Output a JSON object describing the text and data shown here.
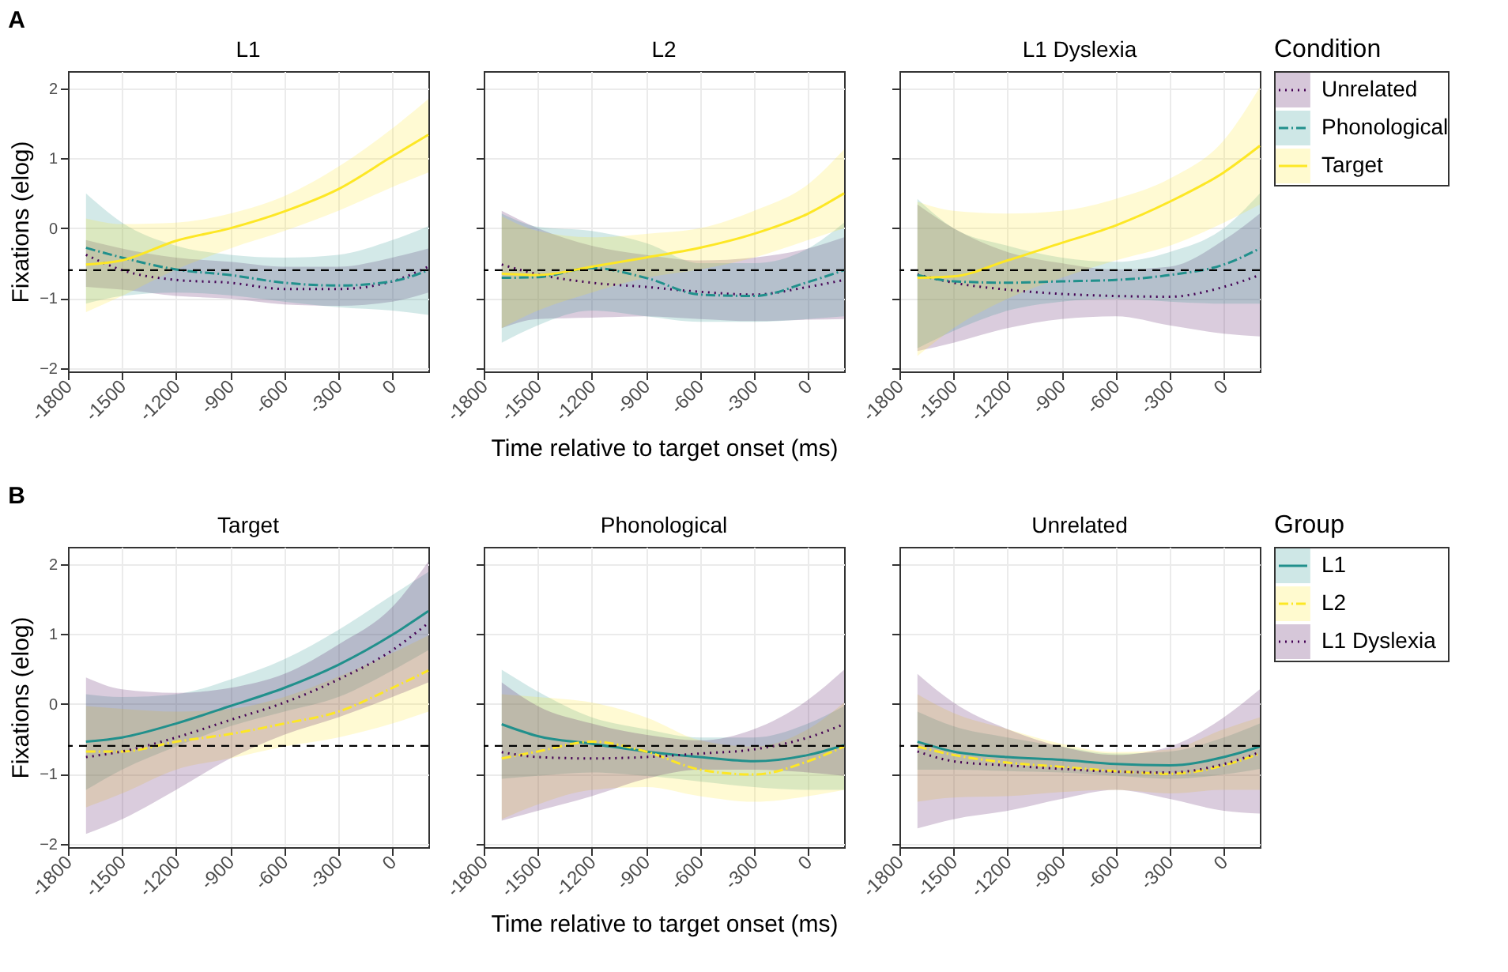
{
  "chart_data": [
    {
      "type": "line",
      "title": "L1",
      "ylabel": "Fixations (elog)",
      "annotations": [
        "A"
      ],
      "legend": "right",
      "legend_title": "Condition",
      "x": [
        -1700,
        -1500,
        -1200,
        -900,
        -600,
        -300,
        0,
        200
      ],
      "xlim": [
        -1800,
        200
      ],
      "xticks": [
        -1800,
        -1500,
        -1200,
        -900,
        -600,
        -300,
        0
      ],
      "ylim": [
        -2.05,
        2.25
      ],
      "yticks": [
        -2,
        -1,
        0,
        1,
        2
      ],
      "grid": true,
      "ref_lines": [
        {
          "axis": "y",
          "value": -0.6,
          "color": "#000000",
          "line_style": "dashed"
        }
      ],
      "series": [
        {
          "name": "Unrelated",
          "color": "#440154",
          "line_style": "dotted",
          "values": [
            -0.38,
            -0.6,
            -0.74,
            -0.78,
            -0.87,
            -0.87,
            -0.76,
            -0.55
          ],
          "lower": [
            -0.84,
            -0.88,
            -0.97,
            -1.01,
            -1.09,
            -1.11,
            -1.05,
            -0.92
          ],
          "upper": [
            -0.17,
            -0.29,
            -0.42,
            -0.48,
            -0.55,
            -0.55,
            -0.42,
            -0.29
          ]
        },
        {
          "name": "Phonological",
          "color": "#21908c",
          "line_style": "dashed",
          "values": [
            -0.28,
            -0.42,
            -0.59,
            -0.67,
            -0.78,
            -0.82,
            -0.76,
            -0.6
          ],
          "lower": [
            -1.08,
            -0.97,
            -0.92,
            -0.96,
            -1.05,
            -1.13,
            -1.18,
            -1.24
          ],
          "upper": [
            0.5,
            0.08,
            -0.25,
            -0.38,
            -0.42,
            -0.38,
            -0.17,
            0.03
          ]
        },
        {
          "name": "Target",
          "color": "#fde725",
          "line_style": "solid",
          "values": [
            -0.52,
            -0.46,
            -0.18,
            0.0,
            0.24,
            0.56,
            1.03,
            1.34
          ],
          "lower": [
            -1.2,
            -0.97,
            -0.59,
            -0.29,
            -0.04,
            0.25,
            0.59,
            0.8
          ],
          "upper": [
            0.14,
            0.06,
            0.08,
            0.21,
            0.46,
            0.88,
            1.43,
            1.85
          ]
        }
      ]
    },
    {
      "type": "line",
      "title": "L2",
      "xlabel": "Time relative to target onset (ms)",
      "tick_labels": "x",
      "x": [
        -1700,
        -1500,
        -1200,
        -900,
        -600,
        -300,
        0,
        200
      ],
      "xlim": [
        -1800,
        200
      ],
      "xticks": [
        -1800,
        -1500,
        -1200,
        -900,
        -600,
        -300,
        0
      ],
      "ylim": [
        -2.05,
        2.25
      ],
      "yticks": [
        -2,
        -1,
        0,
        1,
        2
      ],
      "grid": true,
      "ref_lines": [
        {
          "axis": "y",
          "value": -0.6,
          "color": "#000000",
          "line_style": "dashed"
        }
      ],
      "series": [
        {
          "color": "#440154",
          "line_style": "dotted",
          "values": [
            -0.52,
            -0.66,
            -0.78,
            -0.84,
            -0.91,
            -0.95,
            -0.84,
            -0.74
          ],
          "lower": [
            -1.43,
            -1.3,
            -1.28,
            -1.26,
            -1.3,
            -1.33,
            -1.31,
            -1.3
          ],
          "upper": [
            0.25,
            0.0,
            -0.25,
            -0.38,
            -0.46,
            -0.42,
            -0.29,
            -0.13
          ]
        },
        {
          "color": "#21908c",
          "line_style": "dashed",
          "values": [
            -0.71,
            -0.7,
            -0.57,
            -0.71,
            -0.95,
            -0.97,
            -0.77,
            -0.6
          ],
          "lower": [
            -1.64,
            -1.39,
            -1.18,
            -1.26,
            -1.34,
            -1.34,
            -1.3,
            -1.26
          ],
          "upper": [
            0.21,
            0.02,
            -0.04,
            -0.21,
            -0.5,
            -0.5,
            -0.29,
            0.08
          ]
        },
        {
          "color": "#fde725",
          "line_style": "solid",
          "values": [
            -0.65,
            -0.67,
            -0.55,
            -0.42,
            -0.28,
            -0.08,
            0.21,
            0.5
          ],
          "lower": [
            -1.43,
            -1.18,
            -0.92,
            -0.71,
            -0.59,
            -0.42,
            -0.17,
            0.0
          ],
          "upper": [
            0.17,
            -0.04,
            -0.13,
            -0.08,
            0.0,
            0.25,
            0.63,
            1.13
          ]
        }
      ]
    },
    {
      "type": "line",
      "title": "L1 Dyslexia",
      "tick_labels": "x",
      "x": [
        -1700,
        -1500,
        -1200,
        -900,
        -600,
        -300,
        0,
        200
      ],
      "xlim": [
        -1800,
        200
      ],
      "xticks": [
        -1800,
        -1500,
        -1200,
        -900,
        -600,
        -300,
        0
      ],
      "ylim": [
        -2.05,
        2.25
      ],
      "yticks": [
        -2,
        -1,
        0,
        1,
        2
      ],
      "grid": true,
      "ref_lines": [
        {
          "axis": "y",
          "value": -0.6,
          "color": "#000000",
          "line_style": "dashed"
        }
      ],
      "series": [
        {
          "color": "#440154",
          "line_style": "dotted",
          "values": [
            -0.66,
            -0.78,
            -0.88,
            -0.94,
            -0.97,
            -0.98,
            -0.84,
            -0.67
          ],
          "lower": [
            -1.76,
            -1.64,
            -1.43,
            -1.3,
            -1.26,
            -1.39,
            -1.51,
            -1.55
          ],
          "upper": [
            0.34,
            0.0,
            -0.34,
            -0.5,
            -0.59,
            -0.55,
            -0.17,
            0.21
          ]
        },
        {
          "color": "#21908c",
          "line_style": "dashed",
          "values": [
            -0.67,
            -0.76,
            -0.78,
            -0.76,
            -0.74,
            -0.67,
            -0.52,
            -0.29
          ],
          "lower": [
            -1.72,
            -1.47,
            -1.18,
            -1.05,
            -1.01,
            -1.05,
            -1.08,
            -1.08
          ],
          "upper": [
            0.42,
            0.0,
            -0.25,
            -0.42,
            -0.48,
            -0.34,
            0.0,
            0.5
          ]
        },
        {
          "color": "#fde725",
          "line_style": "solid",
          "values": [
            -0.71,
            -0.69,
            -0.46,
            -0.21,
            0.04,
            0.38,
            0.8,
            1.18
          ],
          "lower": [
            -1.83,
            -1.43,
            -1.01,
            -0.71,
            -0.46,
            -0.25,
            0.08,
            0.34
          ],
          "upper": [
            0.38,
            0.25,
            0.21,
            0.25,
            0.42,
            0.71,
            1.26,
            2.02
          ]
        }
      ]
    },
    {
      "type": "line",
      "title": "Target",
      "ylabel": "Fixations (elog)",
      "annotations": [
        "B"
      ],
      "legend": "right",
      "legend_title": "Group",
      "x": [
        -1700,
        -1500,
        -1200,
        -900,
        -600,
        -300,
        0,
        200
      ],
      "xlim": [
        -1800,
        200
      ],
      "xticks": [
        -1800,
        -1500,
        -1200,
        -900,
        -600,
        -300,
        0
      ],
      "ylim": [
        -2.05,
        2.25
      ],
      "yticks": [
        -2,
        -1,
        0,
        1,
        2
      ],
      "grid": true,
      "ref_lines": [
        {
          "axis": "y",
          "value": -0.6,
          "color": "#000000",
          "line_style": "dashed"
        }
      ],
      "series": [
        {
          "name": "L1",
          "color": "#21908c",
          "line_style": "solid",
          "values": [
            -0.54,
            -0.48,
            -0.28,
            -0.03,
            0.23,
            0.56,
            0.99,
            1.33
          ],
          "lower": [
            -1.23,
            -0.94,
            -0.61,
            -0.32,
            -0.11,
            0.1,
            0.48,
            0.77
          ],
          "upper": [
            0.14,
            0.1,
            0.14,
            0.35,
            0.64,
            1.06,
            1.56,
            1.89
          ]
        },
        {
          "name": "L2",
          "color": "#fde725",
          "line_style": "dashed",
          "values": [
            -0.68,
            -0.68,
            -0.54,
            -0.43,
            -0.28,
            -0.11,
            0.23,
            0.48
          ],
          "lower": [
            -1.48,
            -1.28,
            -0.94,
            -0.78,
            -0.61,
            -0.48,
            -0.28,
            -0.11
          ],
          "upper": [
            -0.03,
            -0.07,
            -0.11,
            -0.07,
            0.1,
            0.39,
            0.73,
            0.98
          ]
        },
        {
          "name": "L1 Dyslexia",
          "color": "#440154",
          "line_style": "dotted",
          "values": [
            -0.76,
            -0.68,
            -0.48,
            -0.23,
            0.02,
            0.35,
            0.77,
            1.16
          ],
          "lower": [
            -1.86,
            -1.65,
            -1.23,
            -0.78,
            -0.44,
            -0.19,
            0.1,
            0.31
          ],
          "upper": [
            0.38,
            0.21,
            0.16,
            0.23,
            0.43,
            0.85,
            1.39,
            2.04
          ]
        }
      ]
    },
    {
      "type": "line",
      "title": "Phonological",
      "xlabel": "Time relative to target onset (ms)",
      "tick_labels": "x",
      "x": [
        -1700,
        -1500,
        -1200,
        -900,
        -600,
        -300,
        0,
        200
      ],
      "xlim": [
        -1800,
        200
      ],
      "xticks": [
        -1800,
        -1500,
        -1200,
        -900,
        -600,
        -300,
        0
      ],
      "ylim": [
        -2.05,
        2.25
      ],
      "yticks": [
        -2,
        -1,
        0,
        1,
        2
      ],
      "grid": true,
      "ref_lines": [
        {
          "axis": "y",
          "value": -0.6,
          "color": "#000000",
          "line_style": "dashed"
        }
      ],
      "series": [
        {
          "color": "#21908c",
          "line_style": "solid",
          "values": [
            -0.29,
            -0.46,
            -0.57,
            -0.68,
            -0.76,
            -0.82,
            -0.73,
            -0.59
          ],
          "lower": [
            -1.07,
            -1.03,
            -0.98,
            -1.03,
            -1.11,
            -1.19,
            -1.23,
            -1.23
          ],
          "upper": [
            0.49,
            0.18,
            -0.19,
            -0.36,
            -0.48,
            -0.48,
            -0.28,
            -0.03
          ]
        },
        {
          "color": "#fde725",
          "line_style": "dashed",
          "values": [
            -0.78,
            -0.68,
            -0.54,
            -0.68,
            -0.94,
            -1.01,
            -0.82,
            -0.61
          ],
          "lower": [
            -1.65,
            -1.44,
            -1.23,
            -1.19,
            -1.32,
            -1.4,
            -1.32,
            -1.23
          ],
          "upper": [
            0.14,
            0.1,
            0.02,
            -0.19,
            -0.52,
            -0.61,
            -0.36,
            0.02
          ]
        },
        {
          "color": "#440154",
          "line_style": "dotted",
          "values": [
            -0.69,
            -0.76,
            -0.78,
            -0.76,
            -0.71,
            -0.65,
            -0.48,
            -0.29
          ],
          "lower": [
            -1.67,
            -1.53,
            -1.32,
            -1.07,
            -0.94,
            -0.94,
            -0.98,
            -1.03
          ],
          "upper": [
            0.31,
            -0.03,
            -0.28,
            -0.44,
            -0.52,
            -0.36,
            0.06,
            0.49
          ]
        }
      ]
    },
    {
      "type": "line",
      "title": "Unrelated",
      "tick_labels": "x",
      "x": [
        -1700,
        -1500,
        -1200,
        -900,
        -600,
        -300,
        0,
        200
      ],
      "xlim": [
        -1800,
        200
      ],
      "xticks": [
        -1800,
        -1500,
        -1200,
        -900,
        -600,
        -300,
        0
      ],
      "ylim": [
        -2.05,
        2.25
      ],
      "yticks": [
        -2,
        -1,
        0,
        1,
        2
      ],
      "grid": true,
      "ref_lines": [
        {
          "axis": "y",
          "value": -0.6,
          "color": "#000000",
          "line_style": "dashed"
        }
      ],
      "series": [
        {
          "color": "#21908c",
          "line_style": "solid",
          "values": [
            -0.54,
            -0.68,
            -0.76,
            -0.8,
            -0.86,
            -0.88,
            -0.76,
            -0.61
          ],
          "lower": [
            -0.94,
            -0.94,
            -0.96,
            -0.98,
            -1.03,
            -1.07,
            -1.01,
            -0.93
          ],
          "upper": [
            -0.11,
            -0.32,
            -0.48,
            -0.61,
            -0.71,
            -0.68,
            -0.48,
            -0.28
          ]
        },
        {
          "color": "#fde725",
          "line_style": "dashed",
          "values": [
            -0.61,
            -0.73,
            -0.84,
            -0.9,
            -0.96,
            -1.0,
            -0.88,
            -0.71
          ],
          "lower": [
            -1.4,
            -1.34,
            -1.32,
            -1.26,
            -1.23,
            -1.28,
            -1.23,
            -1.23
          ],
          "upper": [
            0.14,
            -0.13,
            -0.36,
            -0.57,
            -0.69,
            -0.65,
            -0.36,
            -0.19
          ]
        },
        {
          "color": "#440154",
          "line_style": "dotted",
          "values": [
            -0.68,
            -0.82,
            -0.88,
            -0.93,
            -0.97,
            -0.98,
            -0.86,
            -0.69
          ],
          "lower": [
            -1.78,
            -1.65,
            -1.53,
            -1.36,
            -1.23,
            -1.36,
            -1.53,
            -1.57
          ],
          "upper": [
            0.43,
            0.02,
            -0.36,
            -0.61,
            -0.73,
            -0.61,
            -0.19,
            0.21
          ]
        }
      ]
    }
  ]
}
